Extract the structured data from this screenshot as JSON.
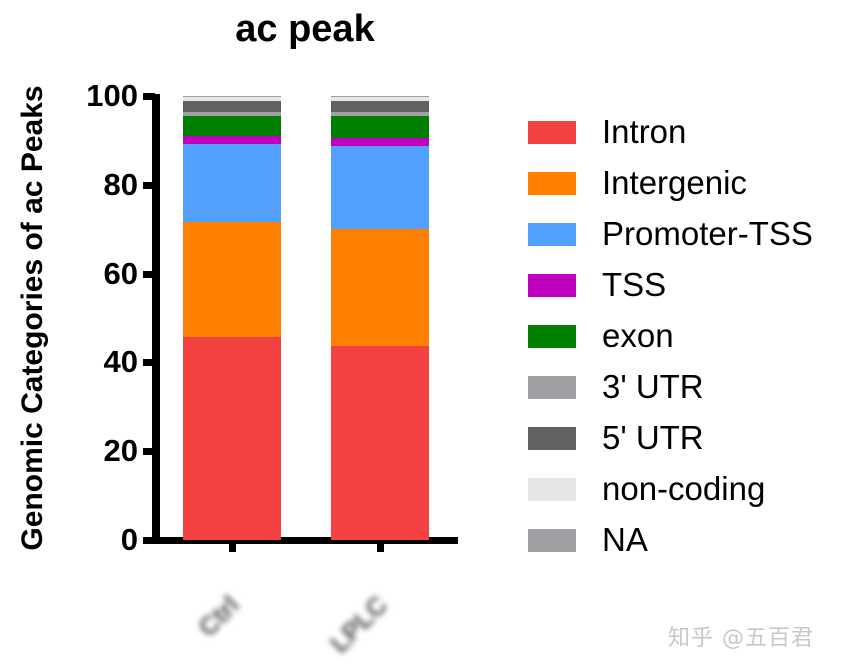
{
  "chart_data": {
    "type": "bar",
    "stacked": true,
    "title": "ac peak",
    "xlabel": "",
    "ylabel": "Genomic Categories of ac Peaks",
    "ylim": [
      0,
      100
    ],
    "yticks": [
      "0",
      "20",
      "40",
      "60",
      "80",
      "100"
    ],
    "categories": [
      "[obscured]",
      "[obscured]"
    ],
    "grid": false,
    "legend_position": "right",
    "series": [
      {
        "name": "Intron",
        "color": "#f44242",
        "values": [
          45.8,
          43.8
        ]
      },
      {
        "name": "Intergenic",
        "color": "#ff8000",
        "values": [
          25.8,
          26.2
        ]
      },
      {
        "name": "Promoter-TSS",
        "color": "#529ffc",
        "values": [
          17.6,
          18.7
        ]
      },
      {
        "name": "TSS",
        "color": "#bf00bf",
        "values": [
          1.8,
          1.8
        ]
      },
      {
        "name": "exon",
        "color": "#007f00",
        "values": [
          4.5,
          5.0
        ]
      },
      {
        "name": "3' UTR",
        "color": "#a0a0a4",
        "values": [
          0.9,
          0.9
        ]
      },
      {
        "name": "5' UTR",
        "color": "#626262",
        "values": [
          2.5,
          2.5
        ]
      },
      {
        "name": "non-coding",
        "color": "#e6e6e6",
        "values": [
          0.9,
          0.9
        ]
      },
      {
        "name": "NA",
        "color": "#a0a0a4",
        "values": [
          0.2,
          0.2
        ]
      }
    ]
  },
  "title": "ac peak",
  "ylabel": "Genomic Categories of ac Peaks",
  "yticks": [
    "0",
    "20",
    "40",
    "60",
    "80",
    "100"
  ],
  "xlabels": [
    "Ctrl",
    "LPLC"
  ],
  "legend": [
    "Intron",
    "Intergenic",
    "Promoter-TSS",
    "TSS",
    "exon",
    "3' UTR",
    "5' UTR",
    "non-coding",
    "NA"
  ],
  "watermark": "知乎 @五百君"
}
